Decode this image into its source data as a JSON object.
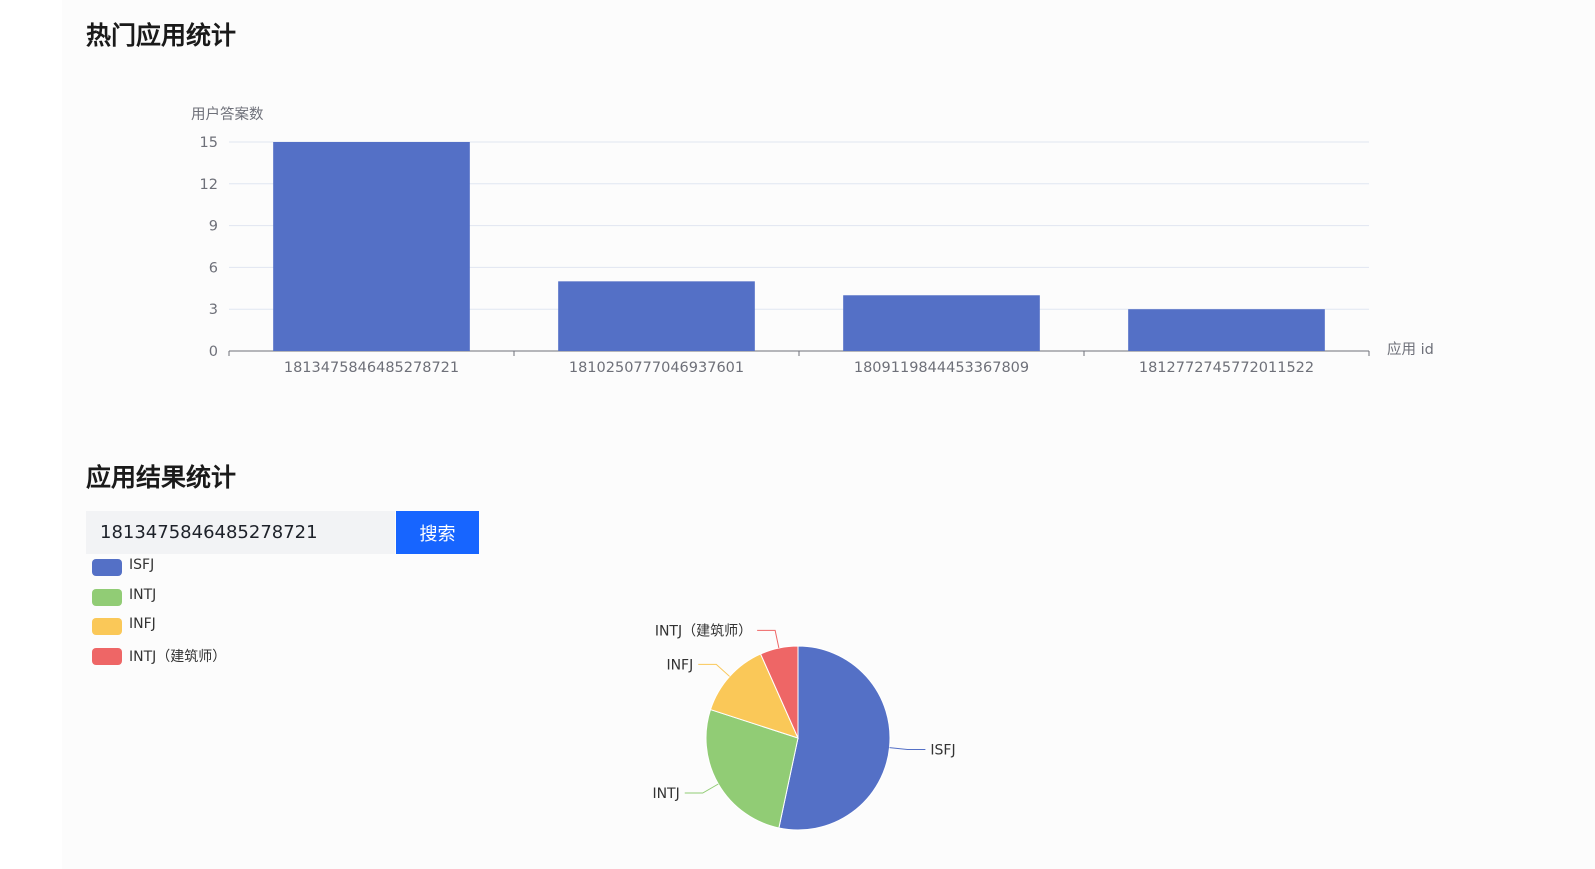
{
  "sections": {
    "hot_apps_title": "热门应用统计",
    "results_title": "应用结果统计"
  },
  "search": {
    "value": "1813475846485278721",
    "button_label": "搜索"
  },
  "colors": {
    "bar": "#5470c6",
    "button": "#1765ff",
    "pie": [
      "#5470c6",
      "#91cc75",
      "#fac858",
      "#ee6666"
    ]
  },
  "chart_data": [
    {
      "type": "bar",
      "ylabel": "用户答案数",
      "xlabel": "应用 id",
      "categories": [
        "1813475846485278721",
        "1810250777046937601",
        "1809119844453367809",
        "1812772745772011522"
      ],
      "values": [
        15,
        5,
        4,
        3
      ],
      "yticks": [
        "0",
        "3",
        "6",
        "9",
        "12",
        "15"
      ],
      "ylim": [
        0,
        15
      ],
      "grid": true
    },
    {
      "type": "pie",
      "legend_position": "top-left",
      "labels": [
        "ISFJ",
        "INTJ",
        "INFJ",
        "INTJ（建筑师）"
      ],
      "values": [
        8,
        4,
        2,
        1
      ]
    }
  ]
}
